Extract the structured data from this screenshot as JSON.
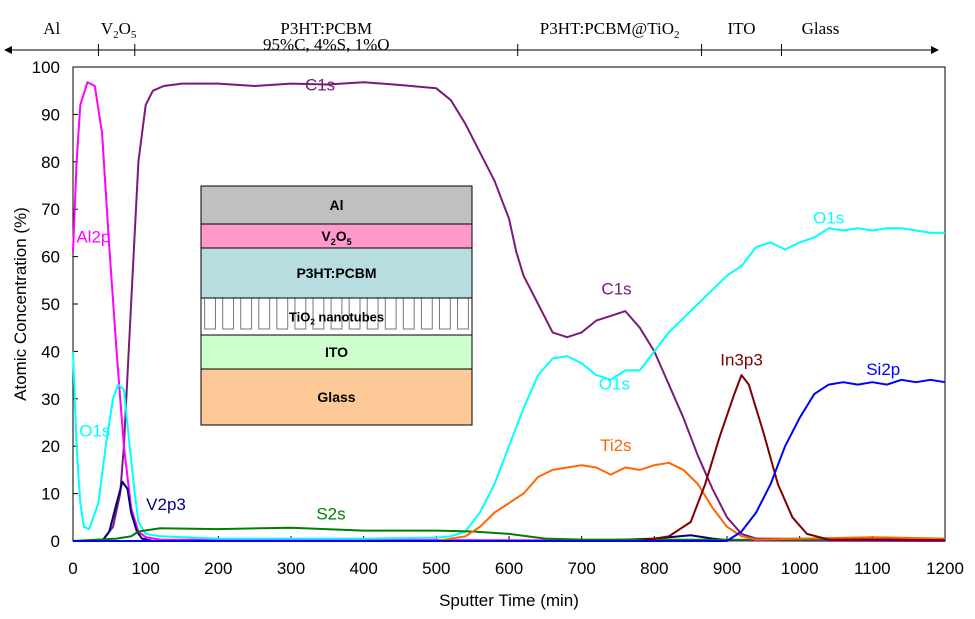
{
  "chart_data": {
    "type": "line",
    "title": "",
    "xlabel": "Sputter Time (min)",
    "ylabel": "Atomic Concentration (%)",
    "xlim": [
      0,
      1200
    ],
    "ylim": [
      0,
      100
    ],
    "x_ticks": [
      "0",
      "100",
      "200",
      "300",
      "400",
      "500",
      "600",
      "700",
      "800",
      "900",
      "1000",
      "1100",
      "1200"
    ],
    "y_ticks": [
      "0",
      "10",
      "20",
      "30",
      "40",
      "50",
      "60",
      "70",
      "80",
      "90",
      "100"
    ],
    "grid": false,
    "legend": "none",
    "series": [
      {
        "name": "C1s",
        "color": "#7b1a7b",
        "points": [
          [
            0,
            0
          ],
          [
            40,
            0
          ],
          [
            55,
            3
          ],
          [
            65,
            10
          ],
          [
            70,
            20
          ],
          [
            80,
            50
          ],
          [
            90,
            80
          ],
          [
            100,
            92
          ],
          [
            110,
            95
          ],
          [
            125,
            96
          ],
          [
            150,
            96.5
          ],
          [
            200,
            96.5
          ],
          [
            250,
            96
          ],
          [
            300,
            96.5
          ],
          [
            350,
            96.3
          ],
          [
            400,
            96.8
          ],
          [
            450,
            96.2
          ],
          [
            500,
            95.5
          ],
          [
            520,
            93
          ],
          [
            540,
            88
          ],
          [
            560,
            82
          ],
          [
            580,
            76
          ],
          [
            600,
            68
          ],
          [
            610,
            61
          ],
          [
            620,
            56
          ],
          [
            640,
            50
          ],
          [
            660,
            44
          ],
          [
            680,
            43
          ],
          [
            700,
            44
          ],
          [
            720,
            46.5
          ],
          [
            740,
            47.5
          ],
          [
            760,
            48.5
          ],
          [
            780,
            45
          ],
          [
            800,
            40
          ],
          [
            820,
            33
          ],
          [
            840,
            26
          ],
          [
            860,
            18
          ],
          [
            880,
            11
          ],
          [
            900,
            5
          ],
          [
            920,
            1.5
          ],
          [
            940,
            0.5
          ],
          [
            1200,
            0.3
          ]
        ]
      },
      {
        "name": "Al2p",
        "color": "#ff00ff",
        "points": [
          [
            0,
            61
          ],
          [
            5,
            80
          ],
          [
            10,
            92
          ],
          [
            20,
            96.8
          ],
          [
            30,
            96
          ],
          [
            40,
            86
          ],
          [
            50,
            62
          ],
          [
            60,
            40
          ],
          [
            70,
            20
          ],
          [
            80,
            7
          ],
          [
            90,
            2
          ],
          [
            100,
            0.8
          ],
          [
            120,
            0.3
          ],
          [
            1200,
            0
          ]
        ]
      },
      {
        "name": "O1s",
        "color": "#00ffff",
        "points": [
          [
            0,
            40
          ],
          [
            5,
            20
          ],
          [
            10,
            8
          ],
          [
            15,
            3
          ],
          [
            22,
            2.5
          ],
          [
            35,
            8
          ],
          [
            45,
            20
          ],
          [
            55,
            30
          ],
          [
            62,
            33
          ],
          [
            70,
            32
          ],
          [
            78,
            20
          ],
          [
            85,
            10
          ],
          [
            90,
            4
          ],
          [
            100,
            1.5
          ],
          [
            120,
            1
          ],
          [
            200,
            0.5
          ],
          [
            400,
            0.5
          ],
          [
            500,
            0.7
          ],
          [
            520,
            1
          ],
          [
            540,
            2
          ],
          [
            560,
            6
          ],
          [
            580,
            12
          ],
          [
            600,
            20
          ],
          [
            620,
            28
          ],
          [
            640,
            35
          ],
          [
            660,
            38.5
          ],
          [
            680,
            39
          ],
          [
            700,
            37.5
          ],
          [
            720,
            35
          ],
          [
            740,
            34
          ],
          [
            760,
            36
          ],
          [
            780,
            36
          ],
          [
            800,
            40
          ],
          [
            820,
            44
          ],
          [
            840,
            47
          ],
          [
            860,
            50
          ],
          [
            880,
            53
          ],
          [
            900,
            56
          ],
          [
            920,
            58
          ],
          [
            940,
            62
          ],
          [
            960,
            63
          ],
          [
            980,
            61.5
          ],
          [
            1000,
            63
          ],
          [
            1020,
            64
          ],
          [
            1040,
            66
          ],
          [
            1060,
            65.5
          ],
          [
            1080,
            66
          ],
          [
            1100,
            65.5
          ],
          [
            1120,
            66
          ],
          [
            1140,
            66
          ],
          [
            1160,
            65.5
          ],
          [
            1180,
            65
          ],
          [
            1200,
            65
          ]
        ]
      },
      {
        "name": "V2p3",
        "color": "#00007f",
        "points": [
          [
            0,
            0
          ],
          [
            40,
            0
          ],
          [
            50,
            2
          ],
          [
            60,
            8
          ],
          [
            68,
            12.5
          ],
          [
            75,
            11
          ],
          [
            80,
            6
          ],
          [
            88,
            2
          ],
          [
            95,
            0.5
          ],
          [
            110,
            0
          ],
          [
            700,
            0
          ],
          [
            800,
            0.5
          ],
          [
            850,
            1.2
          ],
          [
            880,
            0.5
          ],
          [
            900,
            0.2
          ],
          [
            1200,
            0.1
          ]
        ]
      },
      {
        "name": "S2s",
        "color": "#007f00",
        "points": [
          [
            0,
            0
          ],
          [
            60,
            0.5
          ],
          [
            80,
            1
          ],
          [
            90,
            2
          ],
          [
            120,
            2.7
          ],
          [
            200,
            2.5
          ],
          [
            300,
            2.8
          ],
          [
            400,
            2.2
          ],
          [
            500,
            2.2
          ],
          [
            550,
            2
          ],
          [
            600,
            1.5
          ],
          [
            650,
            0.5
          ],
          [
            700,
            0.3
          ],
          [
            1200,
            0.2
          ]
        ]
      },
      {
        "name": "Ti2s",
        "color": "#ff6600",
        "points": [
          [
            0,
            0
          ],
          [
            500,
            0
          ],
          [
            540,
            1
          ],
          [
            560,
            3
          ],
          [
            580,
            6
          ],
          [
            600,
            8
          ],
          [
            620,
            10
          ],
          [
            640,
            13.5
          ],
          [
            660,
            15
          ],
          [
            700,
            16
          ],
          [
            720,
            15.5
          ],
          [
            740,
            14
          ],
          [
            760,
            15.5
          ],
          [
            780,
            15
          ],
          [
            800,
            16
          ],
          [
            820,
            16.5
          ],
          [
            840,
            15
          ],
          [
            860,
            12
          ],
          [
            880,
            7
          ],
          [
            900,
            3
          ],
          [
            920,
            1
          ],
          [
            940,
            0.3
          ],
          [
            1000,
            0.5
          ],
          [
            1100,
            0.8
          ],
          [
            1200,
            0.5
          ]
        ]
      },
      {
        "name": "In3p3",
        "color": "#7f0000",
        "points": [
          [
            0,
            0
          ],
          [
            780,
            0
          ],
          [
            820,
            1
          ],
          [
            850,
            4
          ],
          [
            870,
            12
          ],
          [
            890,
            22
          ],
          [
            910,
            31
          ],
          [
            920,
            35
          ],
          [
            930,
            33
          ],
          [
            950,
            23
          ],
          [
            970,
            12
          ],
          [
            990,
            5
          ],
          [
            1010,
            1.5
          ],
          [
            1040,
            0.3
          ],
          [
            1200,
            0.2
          ]
        ]
      },
      {
        "name": "Si2p",
        "color": "#0000ff",
        "points": [
          [
            0,
            0
          ],
          [
            900,
            0
          ],
          [
            920,
            2
          ],
          [
            940,
            6
          ],
          [
            960,
            12
          ],
          [
            980,
            20
          ],
          [
            1000,
            26
          ],
          [
            1020,
            31
          ],
          [
            1040,
            33
          ],
          [
            1060,
            33.5
          ],
          [
            1080,
            33
          ],
          [
            1100,
            33.5
          ],
          [
            1120,
            33
          ],
          [
            1140,
            34
          ],
          [
            1160,
            33.5
          ],
          [
            1180,
            34
          ],
          [
            1200,
            33.5
          ]
        ]
      }
    ],
    "annotations": [
      {
        "text": "C1s",
        "x": 340,
        "y": 95,
        "color": "#7b1a7b"
      },
      {
        "text": "Al2p",
        "x": 28,
        "y": 63,
        "color": "#ff00ff"
      },
      {
        "text": "O1s",
        "x": 30,
        "y": 22,
        "color": "#00ffff"
      },
      {
        "text": "V2p3",
        "x": 128,
        "y": 6.5,
        "color": "#00007f"
      },
      {
        "text": "S2s",
        "x": 355,
        "y": 4.5,
        "color": "#007f00"
      },
      {
        "text": "C1s",
        "x": 748,
        "y": 52,
        "color": "#7b1a7b"
      },
      {
        "text": "O1s",
        "x": 745,
        "y": 32,
        "color": "#00ffff"
      },
      {
        "text": "O1s",
        "x": 1040,
        "y": 67,
        "color": "#00ffff"
      },
      {
        "text": "Ti2s",
        "x": 747,
        "y": 19,
        "color": "#ff6600"
      },
      {
        "text": "In3p3",
        "x": 920,
        "y": 37,
        "color": "#7f0000"
      },
      {
        "text": "Si2p",
        "x": 1115,
        "y": 35,
        "color": "#0000ff"
      }
    ],
    "layer_regions": [
      {
        "label": "Al",
        "from": 0,
        "to": 35
      },
      {
        "label": "V2O5",
        "from": 35,
        "to": 85
      },
      {
        "label": "P3HT:PCBM",
        "sublabel": "95%C, 4%S, 1%O",
        "from": 85,
        "to": 612
      },
      {
        "label": "P3HT:PCBM@TiO2",
        "from": 612,
        "to": 865
      },
      {
        "label": "ITO",
        "from": 865,
        "to": 975
      },
      {
        "label": "Glass",
        "from": 975,
        "to": 1200
      }
    ],
    "inset": {
      "layers": [
        {
          "label": "Al",
          "color": "#c0c0c0"
        },
        {
          "label": "V2O5",
          "color": "#ff99cc"
        },
        {
          "label": "P3HT:PCBM",
          "color": "#b7dde0"
        },
        {
          "label": "TiO2 nanotubes",
          "color": "#b7dde0"
        },
        {
          "label": "ITO",
          "color": "#ccffcc"
        },
        {
          "label": "Glass",
          "color": "#fdc997"
        }
      ]
    }
  }
}
